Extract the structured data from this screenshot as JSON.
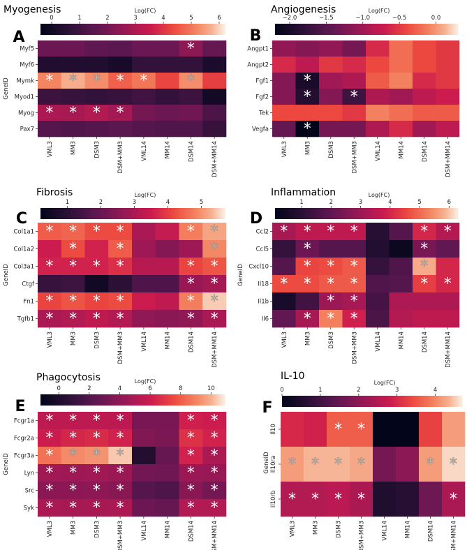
{
  "figure": {
    "columns": [
      "VML3",
      "MM3",
      "DSM3",
      "DSM+MM3",
      "VML14",
      "MM14",
      "DSM14",
      "DSM+MM14"
    ],
    "colorbar_label": "Log(FC)",
    "ylabel": "GeneID"
  },
  "chart_data": [
    {
      "type": "heatmap",
      "title": "Myogenesis",
      "panel_letter": "A",
      "rows": [
        "Myf5",
        "Myf6",
        "Mymk",
        "Myod1",
        "Myog",
        "Pax7"
      ],
      "values": [
        [
          1.8,
          1.8,
          1.6,
          1.5,
          1.8,
          1.8,
          2.4,
          1.7
        ],
        [
          0.3,
          0.3,
          0.3,
          0.1,
          0.7,
          0.7,
          0.7,
          0.2
        ],
        [
          5.2,
          5.7,
          5.3,
          4.7,
          5.0,
          4.3,
          5.3,
          4.2
        ],
        [
          0.9,
          0.8,
          0.7,
          0.8,
          1.0,
          0.7,
          0.9,
          0.0
        ],
        [
          3.0,
          2.9,
          3.1,
          2.8,
          2.0,
          1.8,
          1.9,
          1.2
        ],
        [
          1.4,
          1.3,
          1.4,
          1.5,
          1.4,
          1.3,
          1.3,
          0.8
        ]
      ],
      "significant": [
        [
          0,
          0,
          0,
          0,
          0,
          0,
          1,
          0
        ],
        [
          0,
          0,
          0,
          0,
          0,
          0,
          0,
          0
        ],
        [
          1,
          1,
          1,
          1,
          1,
          0,
          1,
          0
        ],
        [
          0,
          0,
          0,
          0,
          0,
          0,
          0,
          0
        ],
        [
          1,
          1,
          1,
          1,
          0,
          0,
          0,
          0
        ],
        [
          0,
          0,
          0,
          0,
          0,
          0,
          0,
          0
        ]
      ],
      "colorbar": {
        "min": -0.4,
        "max": 6.2,
        "ticks": [
          0,
          1,
          2,
          3,
          4,
          5,
          6
        ]
      },
      "show_ylabel": true
    },
    {
      "type": "heatmap",
      "title": "Angiogenesis",
      "panel_letter": "B",
      "rows": [
        "Angpt1",
        "Angpt2",
        "Fgf1",
        "Fgf2",
        "Tek",
        "Vegfa"
      ],
      "values": [
        [
          -1.1,
          -1.2,
          -1.1,
          -1.3,
          -0.6,
          -0.2,
          -0.4,
          -0.5
        ],
        [
          -0.6,
          -0.8,
          -0.5,
          -0.6,
          -0.4,
          -0.2,
          -0.4,
          -0.5
        ],
        [
          -1.2,
          -2.0,
          -1.0,
          -0.9,
          -0.3,
          -0.1,
          -0.6,
          -0.5
        ],
        [
          -1.2,
          -1.9,
          -1.2,
          -1.7,
          -0.9,
          -1.0,
          -0.8,
          -0.7
        ],
        [
          -0.4,
          -0.4,
          -0.4,
          -0.5,
          -0.1,
          -0.2,
          -0.3,
          -0.3
        ],
        [
          -1.4,
          -2.2,
          -1.3,
          -1.3,
          -0.9,
          -0.6,
          -1.0,
          -0.8
        ]
      ],
      "significant": [
        [
          0,
          0,
          0,
          0,
          0,
          0,
          0,
          0
        ],
        [
          0,
          0,
          0,
          0,
          0,
          0,
          0,
          0
        ],
        [
          0,
          1,
          0,
          0,
          0,
          0,
          0,
          0
        ],
        [
          0,
          1,
          0,
          1,
          0,
          0,
          0,
          0
        ],
        [
          0,
          0,
          0,
          0,
          0,
          0,
          0,
          0
        ],
        [
          0,
          1,
          0,
          0,
          0,
          0,
          0,
          0
        ]
      ],
      "colorbar": {
        "min": -2.2,
        "max": 0.3,
        "ticks": [
          -2.0,
          -1.5,
          -1.0,
          -0.5,
          0.0
        ]
      },
      "tick_labels": [
        "−2.0",
        "−1.5",
        "−1.0",
        "−0.5",
        "0.0"
      ],
      "show_ylabel": false
    },
    {
      "type": "heatmap",
      "title": "Fibrosis",
      "panel_letter": "C",
      "rows": [
        "Col1a1",
        "Col1a2",
        "Col3a1",
        "Ctgf",
        "Fn1",
        "Tgfb1"
      ],
      "values": [
        [
          4.4,
          4.5,
          4.2,
          4.2,
          3.0,
          3.4,
          4.8,
          5.2
        ],
        [
          3.5,
          4.2,
          3.6,
          4.4,
          2.8,
          2.4,
          2.8,
          4.9
        ],
        [
          3.6,
          3.6,
          3.6,
          3.8,
          3.2,
          3.2,
          4.1,
          4.3
        ],
        [
          1.2,
          1.3,
          0.5,
          1.0,
          1.6,
          1.6,
          2.7,
          2.9
        ],
        [
          4.1,
          4.3,
          4.1,
          4.2,
          3.5,
          3.3,
          4.8,
          5.5
        ],
        [
          3.0,
          3.1,
          3.3,
          3.1,
          2.6,
          2.5,
          2.6,
          3.0
        ]
      ],
      "significant": [
        [
          1,
          1,
          1,
          1,
          0,
          0,
          1,
          1
        ],
        [
          0,
          1,
          0,
          1,
          0,
          0,
          0,
          1
        ],
        [
          1,
          1,
          1,
          1,
          0,
          0,
          1,
          1
        ],
        [
          0,
          0,
          0,
          0,
          0,
          0,
          1,
          1
        ],
        [
          1,
          1,
          1,
          1,
          0,
          0,
          1,
          1
        ],
        [
          1,
          1,
          1,
          1,
          0,
          0,
          1,
          1
        ]
      ],
      "colorbar": {
        "min": 0.2,
        "max": 5.7,
        "ticks": [
          1,
          2,
          3,
          4,
          5
        ]
      },
      "show_ylabel": true
    },
    {
      "type": "heatmap",
      "title": "Inflammation",
      "panel_letter": "D",
      "rows": [
        "Ccl2",
        "Ccl5",
        "Cxcl10",
        "Il18",
        "Il1b",
        "Il6"
      ],
      "values": [
        [
          3.2,
          3.6,
          3.6,
          3.6,
          0.9,
          1.8,
          4.0,
          3.4
        ],
        [
          1.2,
          2.2,
          1.8,
          1.8,
          0.8,
          0.3,
          2.4,
          2.0
        ],
        [
          1.8,
          4.5,
          4.6,
          4.8,
          1.2,
          1.7,
          5.8,
          4.0
        ],
        [
          4.6,
          4.6,
          4.8,
          4.8,
          1.7,
          1.8,
          4.4,
          4.0
        ],
        [
          0.6,
          1.4,
          3.0,
          3.2,
          1.5,
          3.3,
          3.3,
          3.3
        ],
        [
          2.0,
          3.2,
          5.3,
          3.9,
          1.6,
          3.4,
          3.6,
          3.6
        ]
      ],
      "significant": [
        [
          1,
          1,
          1,
          1,
          0,
          0,
          1,
          1
        ],
        [
          0,
          1,
          0,
          0,
          0,
          0,
          1,
          0
        ],
        [
          0,
          1,
          1,
          1,
          0,
          0,
          1,
          0
        ],
        [
          1,
          1,
          1,
          1,
          0,
          0,
          1,
          1
        ],
        [
          0,
          0,
          1,
          1,
          0,
          0,
          0,
          0
        ],
        [
          0,
          1,
          1,
          1,
          0,
          0,
          0,
          0
        ]
      ],
      "colorbar": {
        "min": 0.1,
        "max": 6.3,
        "ticks": [
          1,
          2,
          3,
          4,
          5,
          6
        ]
      },
      "show_ylabel": true
    },
    {
      "type": "heatmap",
      "title": "Phagocytosis",
      "panel_letter": "E",
      "rows": [
        "Fcgr1a",
        "Fcgr2a",
        "Fcgr3a",
        "Lyn",
        "Src",
        "Syk"
      ],
      "values": [
        [
          5.6,
          5.6,
          5.6,
          5.5,
          3.3,
          3.3,
          6.2,
          6.1
        ],
        [
          6.1,
          6.4,
          6.6,
          6.3,
          3.6,
          3.4,
          6.8,
          6.3
        ],
        [
          8.6,
          9.2,
          9.4,
          10.4,
          0.2,
          2.7,
          6.3,
          5.0
        ],
        [
          4.6,
          4.5,
          4.6,
          4.4,
          3.1,
          3.0,
          4.4,
          4.3
        ],
        [
          3.9,
          3.9,
          4.0,
          3.8,
          2.1,
          1.8,
          3.8,
          3.2
        ],
        [
          5.0,
          4.8,
          4.9,
          5.0,
          2.9,
          2.7,
          5.2,
          5.2
        ]
      ],
      "significant": [
        [
          1,
          1,
          1,
          1,
          0,
          0,
          1,
          1
        ],
        [
          1,
          1,
          1,
          1,
          0,
          0,
          1,
          1
        ],
        [
          1,
          1,
          1,
          1,
          0,
          0,
          1,
          1
        ],
        [
          1,
          1,
          1,
          1,
          0,
          0,
          1,
          1
        ],
        [
          1,
          1,
          1,
          1,
          0,
          0,
          1,
          1
        ],
        [
          1,
          1,
          1,
          1,
          0,
          0,
          1,
          1
        ]
      ],
      "colorbar": {
        "min": -1.2,
        "max": 10.9,
        "ticks": [
          0,
          2,
          4,
          6,
          8,
          10
        ]
      },
      "show_ylabel": true
    },
    {
      "type": "heatmap",
      "title": "IL-10",
      "panel_letter": "F",
      "rows": [
        "Il10",
        "Il10ra",
        "Il10rb"
      ],
      "values": [
        [
          3.0,
          2.9,
          3.6,
          3.6,
          0.0,
          0.0,
          3.3,
          4.2
        ],
        [
          4.2,
          4.4,
          4.4,
          4.3,
          1.7,
          2.0,
          4.2,
          4.6
        ],
        [
          2.5,
          2.5,
          2.6,
          2.4,
          0.5,
          0.6,
          1.6,
          2.4
        ]
      ],
      "significant": [
        [
          0,
          0,
          1,
          1,
          0,
          0,
          0,
          0
        ],
        [
          1,
          1,
          1,
          1,
          0,
          0,
          1,
          1
        ],
        [
          1,
          1,
          1,
          1,
          0,
          0,
          0,
          1
        ]
      ],
      "colorbar": {
        "min": 0.0,
        "max": 4.7,
        "ticks": [
          0,
          1,
          2,
          3,
          4
        ]
      },
      "show_ylabel": true
    }
  ]
}
